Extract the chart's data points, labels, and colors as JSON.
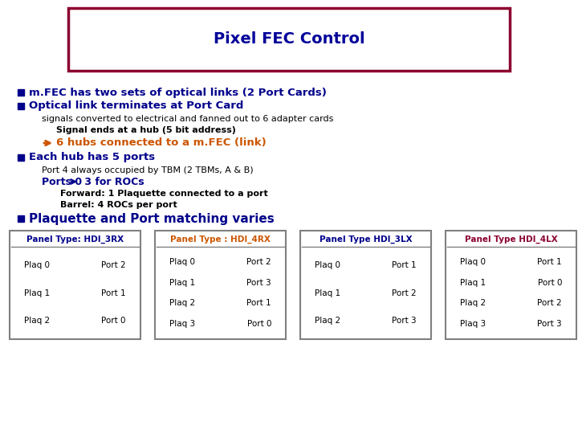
{
  "title": "Pixel FEC Control",
  "title_color": "#000099",
  "title_box_edge_color": "#8B0030",
  "bg_color": "#FFFFFF",
  "bullet_color": "#00008B",
  "bullet1": "m.FEC has two sets of optical links (2 Port Cards)",
  "bullet2": "Optical link terminates at Port Card",
  "sub1": "signals converted to electrical and fanned out to 6 adapter cards",
  "sub2": "Signal ends at a hub (5 bit address)",
  "arrow_line": "6 hubs connected to a m.FEC (link)",
  "arrow_line_color": "#CC5500",
  "bullet3": "Each hub has 5 ports",
  "sub3a": "Port 4 always occupied by TBM (2 TBMs, A & B)",
  "sub3b_pre": "Ports 0 ",
  "sub3b_post": " 3 for ROCs",
  "sub3c": "Forward: 1 Plaquette connected to a port",
  "sub3d": "Barrel: 4 ROCs per port",
  "bullet4": "Plaquette and Port matching varies",
  "panels": [
    {
      "title": "Panel Type: HDI_3RX",
      "title_color": "#00008B",
      "border_color": "#808080",
      "rows": [
        [
          "Plaq 0",
          "Port 2"
        ],
        [
          "Plaq 1",
          "Port 1"
        ],
        [
          "Plaq 2",
          "Port 0"
        ]
      ]
    },
    {
      "title": "Panel Type : HDI_4RX",
      "title_color": "#CC5500",
      "border_color": "#808080",
      "rows": [
        [
          "Plaq 0",
          "Port 2"
        ],
        [
          "Plaq 1",
          "Port 3"
        ],
        [
          "Plaq 2",
          "Port 1"
        ],
        [
          "Plaq 3",
          "Port 0"
        ]
      ]
    },
    {
      "title": "Panel Type HDI_3LX",
      "title_color": "#00008B",
      "border_color": "#808080",
      "rows": [
        [
          "Plaq 0",
          "Port 1"
        ],
        [
          "Plaq 1",
          "Port 2"
        ],
        [
          "Plaq 2",
          "Port 3"
        ]
      ]
    },
    {
      "title": "Panel Type HDI_4LX",
      "title_color": "#8B0030",
      "border_color": "#808080",
      "rows": [
        [
          "Plaq 0",
          "Port 1"
        ],
        [
          "Plaq 1",
          "Port 0"
        ],
        [
          "Plaq 2",
          "Port 2"
        ],
        [
          "Plaq 3",
          "Port 3"
        ]
      ]
    }
  ]
}
